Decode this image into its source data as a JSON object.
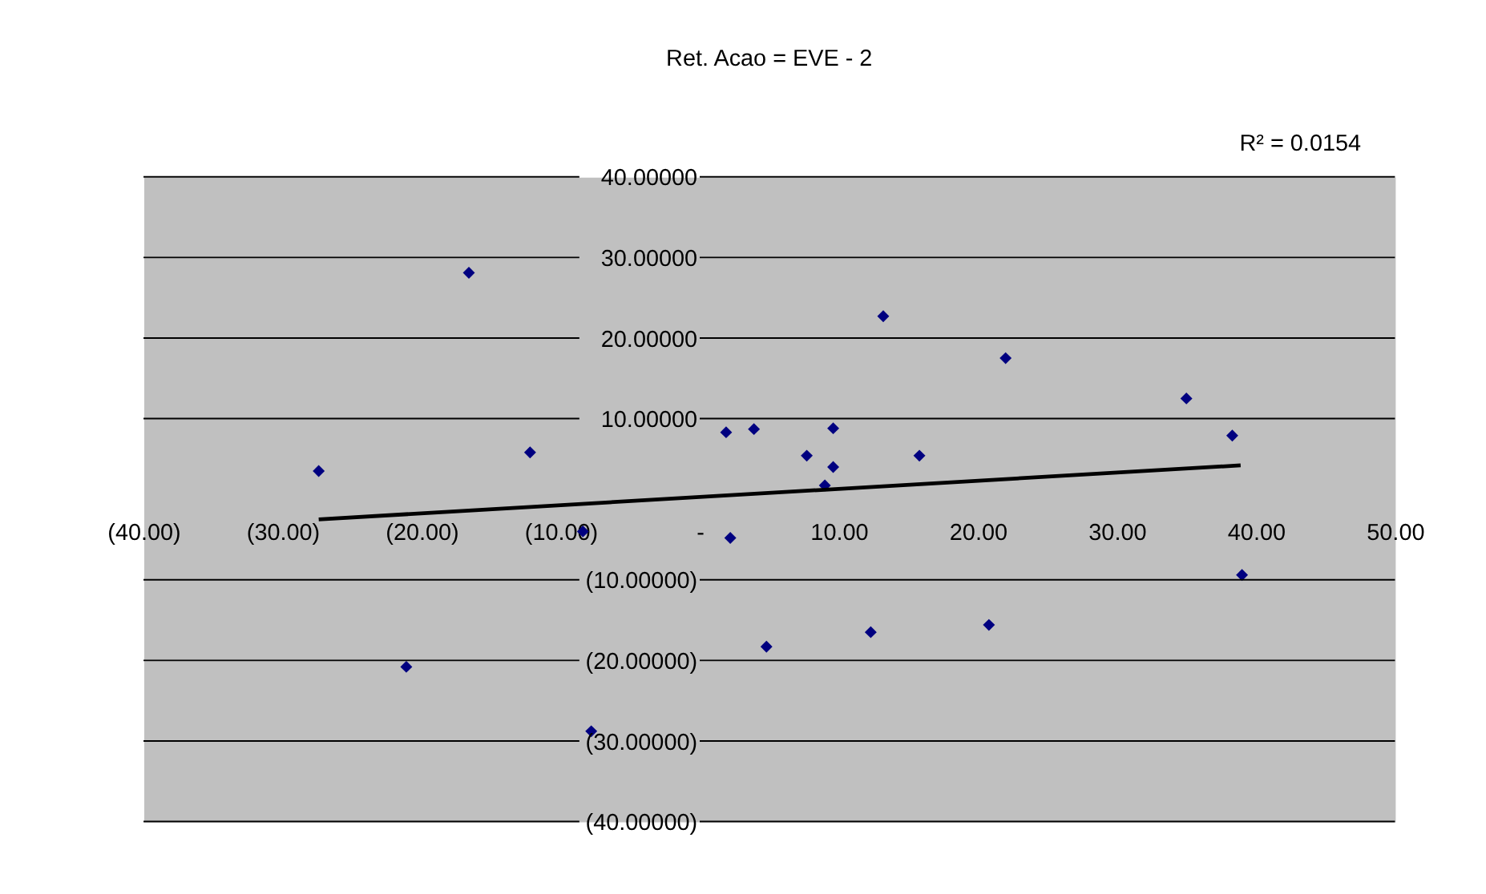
{
  "chart_data": {
    "type": "scatter",
    "title": "Ret. Acao = EVE - 2",
    "annotations": [
      "R² = 0.0154"
    ],
    "series": [
      {
        "type": "scatter",
        "color": "#000080",
        "marker": "diamond",
        "x": [
          -27.4,
          -16.6,
          -21.1,
          -12.2,
          -8.4,
          -7.8,
          1.9,
          2.2,
          3.9,
          4.8,
          7.7,
          9.0,
          9.6,
          9.6,
          13.2,
          12.3,
          15.8,
          20.8,
          22.0,
          35.0,
          38.3,
          39.0
        ],
        "values": [
          3.5,
          28.1,
          -20.8,
          5.8,
          -4.0,
          -28.8,
          8.3,
          -4.8,
          8.7,
          -18.3,
          5.4,
          1.7,
          8.8,
          4.0,
          22.7,
          -16.5,
          5.4,
          -15.6,
          17.5,
          12.5,
          7.9,
          -9.4
        ]
      },
      {
        "type": "line",
        "color": "#000000",
        "marker": "none",
        "x": [
          -27.4,
          38.9
        ],
        "values": [
          -2.5,
          4.2
        ]
      }
    ],
    "xlim": [
      -40,
      50
    ],
    "ylim": [
      -40,
      40
    ],
    "xticks": [
      {
        "value": -40,
        "label": "(40.00)"
      },
      {
        "value": -30,
        "label": "(30.00)"
      },
      {
        "value": -20,
        "label": "(20.00)"
      },
      {
        "value": -10,
        "label": "(10.00)"
      },
      {
        "value": 0,
        "label": "-"
      },
      {
        "value": 10,
        "label": "10.00"
      },
      {
        "value": 20,
        "label": "20.00"
      },
      {
        "value": 30,
        "label": "30.00"
      },
      {
        "value": 40,
        "label": "40.00"
      },
      {
        "value": 50,
        "label": "50.00"
      }
    ],
    "yticks": [
      {
        "value": -40,
        "label": "(40.00000)"
      },
      {
        "value": -30,
        "label": "(30.00000)"
      },
      {
        "value": -20,
        "label": "(20.00000)"
      },
      {
        "value": -10,
        "label": "(10.00000)"
      },
      {
        "value": 10,
        "label": "10.00000"
      },
      {
        "value": 20,
        "label": "20.00000"
      },
      {
        "value": 30,
        "label": "30.00000"
      },
      {
        "value": 40,
        "label": "40.00000"
      }
    ],
    "grid": "y"
  }
}
